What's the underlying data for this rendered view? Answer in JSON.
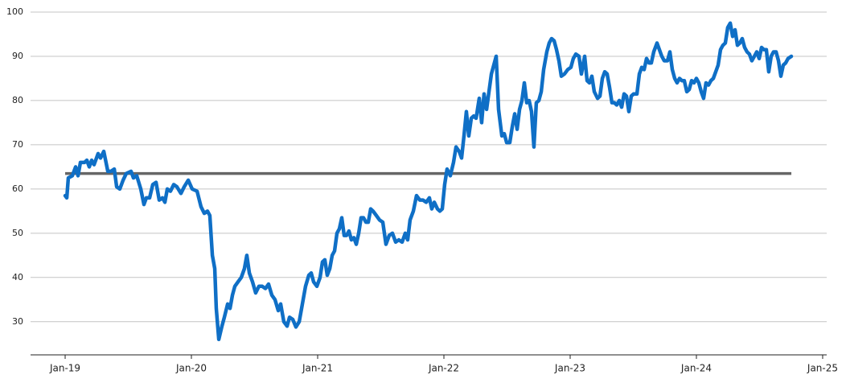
{
  "chart_data": {
    "type": "line",
    "color": "#0f6fc6",
    "xlim": [
      2018.726,
      2025.032
    ],
    "ylim": [
      22.5,
      100
    ],
    "yticks": [
      30,
      40,
      50,
      60,
      70,
      80,
      90,
      100
    ],
    "xticks": [
      {
        "value": 2019,
        "label": "Jan-19"
      },
      {
        "value": 2020,
        "label": "Jan-20"
      },
      {
        "value": 2021,
        "label": "Jan-21"
      },
      {
        "value": 2022,
        "label": "Jan-22"
      },
      {
        "value": 2023,
        "label": "Jan-23"
      },
      {
        "value": 2024,
        "label": "Jan-24"
      },
      {
        "value": 2025,
        "label": "Jan-25"
      }
    ],
    "grid": true,
    "reference_line": {
      "value": 63.5,
      "color": "#666666"
    },
    "x": [
      2019.0,
      2019.013,
      2019.025,
      2019.057,
      2019.083,
      2019.102,
      2019.121,
      2019.153,
      2019.172,
      2019.191,
      2019.21,
      2019.229,
      2019.261,
      2019.28,
      2019.306,
      2019.338,
      2019.363,
      2019.389,
      2019.408,
      2019.433,
      2019.459,
      2019.484,
      2019.522,
      2019.541,
      2019.567,
      2019.599,
      2019.624,
      2019.643,
      2019.669,
      2019.694,
      2019.72,
      2019.745,
      2019.771,
      2019.79,
      2019.809,
      2019.834,
      2019.86,
      2019.885,
      2019.917,
      2019.943,
      2019.975,
      2020.006,
      2020.045,
      2020.076,
      2020.102,
      2020.127,
      2020.146,
      2020.166,
      2020.185,
      2020.197,
      2020.217,
      2020.242,
      2020.261,
      2020.287,
      2020.306,
      2020.325,
      2020.344,
      2020.369,
      2020.395,
      2020.42,
      2020.439,
      2020.459,
      2020.484,
      2020.509,
      2020.535,
      2020.561,
      2020.586,
      2020.611,
      2020.637,
      2020.662,
      2020.688,
      2020.707,
      2020.732,
      2020.758,
      2020.777,
      2020.803,
      2020.828,
      2020.854,
      2020.879,
      2020.904,
      2020.93,
      2020.949,
      2020.968,
      2020.994,
      2021.019,
      2021.038,
      2021.057,
      2021.076,
      2021.096,
      2021.115,
      2021.134,
      2021.153,
      2021.172,
      2021.191,
      2021.21,
      2021.229,
      2021.248,
      2021.267,
      2021.287,
      2021.306,
      2021.325,
      2021.344,
      2021.363,
      2021.382,
      2021.401,
      2021.42,
      2021.439,
      2021.465,
      2021.49,
      2021.516,
      2021.541,
      2021.567,
      2021.592,
      2021.618,
      2021.643,
      2021.669,
      2021.694,
      2021.713,
      2021.732,
      2021.758,
      2021.783,
      2021.809,
      2021.834,
      2021.86,
      2021.885,
      2021.904,
      2021.924,
      2021.949,
      2021.968,
      2021.987,
      2022.006,
      2022.025,
      2022.051,
      2022.076,
      2022.096,
      2022.121,
      2022.14,
      2022.159,
      2022.178,
      2022.197,
      2022.217,
      2022.236,
      2022.255,
      2022.28,
      2022.299,
      2022.318,
      2022.338,
      2022.357,
      2022.376,
      2022.395,
      2022.414,
      2022.433,
      2022.459,
      2022.478,
      2022.497,
      2022.522,
      2022.541,
      2022.561,
      2022.58,
      2022.599,
      2022.618,
      2022.637,
      2022.656,
      2022.675,
      2022.694,
      2022.713,
      2022.732,
      2022.752,
      2022.771,
      2022.79,
      2022.815,
      2022.834,
      2022.853,
      2022.873,
      2022.892,
      2022.911,
      2022.93,
      2022.955,
      2022.981,
      2023.006,
      2023.025,
      2023.045,
      2023.07,
      2023.089,
      2023.115,
      2023.134,
      2023.153,
      2023.172,
      2023.191,
      2023.217,
      2023.236,
      2023.255,
      2023.274,
      2023.293,
      2023.312,
      2023.331,
      2023.35,
      2023.369,
      2023.389,
      2023.408,
      2023.427,
      2023.446,
      2023.465,
      2023.484,
      2023.503,
      2023.529,
      2023.548,
      2023.567,
      2023.586,
      2023.605,
      2023.624,
      2023.643,
      2023.662,
      2023.688,
      2023.707,
      2023.726,
      2023.745,
      2023.771,
      2023.79,
      2023.809,
      2023.828,
      2023.847,
      2023.866,
      2023.885,
      2023.904,
      2023.924,
      2023.943,
      2023.962,
      2023.981,
      2024.0,
      2024.019,
      2024.038,
      2024.057,
      2024.076,
      2024.096,
      2024.115,
      2024.134,
      2024.153,
      2024.172,
      2024.191,
      2024.21,
      2024.229,
      2024.248,
      2024.268,
      2024.287,
      2024.306,
      2024.325,
      2024.344,
      2024.363,
      2024.382,
      2024.401,
      2024.42,
      2024.439,
      2024.459,
      2024.478,
      2024.497,
      2024.516,
      2024.535,
      2024.554,
      2024.573,
      2024.592,
      2024.611,
      2024.631,
      2024.65,
      2024.669,
      2024.688,
      2024.707,
      2024.726,
      2024.752
    ],
    "values": [
      58.5,
      58,
      62.5,
      63,
      65,
      63,
      66,
      66,
      66.5,
      65,
      66.5,
      65.5,
      68,
      67,
      68.5,
      64,
      64,
      64.5,
      60.5,
      60,
      62,
      63.5,
      64,
      62.5,
      63,
      60,
      56.5,
      58,
      58,
      61,
      61.5,
      57.5,
      58,
      57,
      60,
      59.5,
      61,
      60.5,
      59,
      60.5,
      62,
      60,
      59.5,
      56,
      54.5,
      55,
      54,
      45,
      42,
      33,
      26,
      29,
      31,
      34,
      33,
      36,
      38,
      39,
      40,
      42,
      45,
      41,
      39,
      36.5,
      38,
      38,
      37.5,
      38.5,
      36,
      35,
      32.5,
      34,
      30,
      29,
      31,
      30.5,
      28.8,
      30,
      34,
      38,
      40.5,
      41,
      39,
      38,
      40,
      43.5,
      44,
      40.5,
      42,
      45,
      46,
      50,
      51,
      53.5,
      49.5,
      49.5,
      50.5,
      48.5,
      49,
      47.5,
      50,
      53.5,
      53.5,
      52.5,
      52.5,
      55.5,
      55,
      54,
      53,
      52.5,
      47.5,
      49.5,
      50,
      48,
      48.5,
      48,
      50,
      48.5,
      53,
      55,
      58.5,
      57.5,
      57.5,
      57,
      58,
      55.5,
      57,
      55.5,
      55,
      55.5,
      61,
      64.5,
      63,
      66,
      69.5,
      68.5,
      67,
      72,
      77.5,
      72,
      76,
      76.5,
      76,
      80.5,
      75,
      81.5,
      78,
      82,
      86,
      88,
      90,
      78,
      72,
      72.5,
      70.5,
      70.5,
      74,
      77,
      73.5,
      78,
      80,
      84,
      79.5,
      80,
      77.5,
      69.5,
      79.5,
      80,
      82,
      87,
      91,
      93,
      94,
      93.5,
      91.5,
      89,
      85.5,
      86,
      87,
      87.5,
      89.5,
      90.5,
      90,
      86,
      90,
      84.5,
      84,
      85.5,
      82,
      80.5,
      81,
      85,
      86.5,
      86,
      83,
      79.5,
      79.5,
      79,
      80,
      78.5,
      81.5,
      81,
      77.5,
      81,
      81.5,
      81.5,
      86,
      87.5,
      87,
      89.5,
      88.5,
      88.5,
      91,
      93,
      91.5,
      90,
      89,
      89,
      91,
      87,
      85,
      84,
      85,
      84.5,
      84.5,
      82,
      82.5,
      84.5,
      84,
      85,
      84,
      82,
      80.5,
      84,
      83.5,
      84.5,
      85,
      86.5,
      88,
      91.5,
      92.5,
      93,
      96.5,
      97.5,
      94.5,
      96,
      92.5,
      93,
      94,
      92,
      91,
      90.5,
      89,
      90,
      91,
      89.5,
      92,
      91.5,
      91.5,
      86.5,
      90,
      91,
      91,
      89,
      85.5,
      88,
      88.5,
      89.5,
      90
    ]
  }
}
